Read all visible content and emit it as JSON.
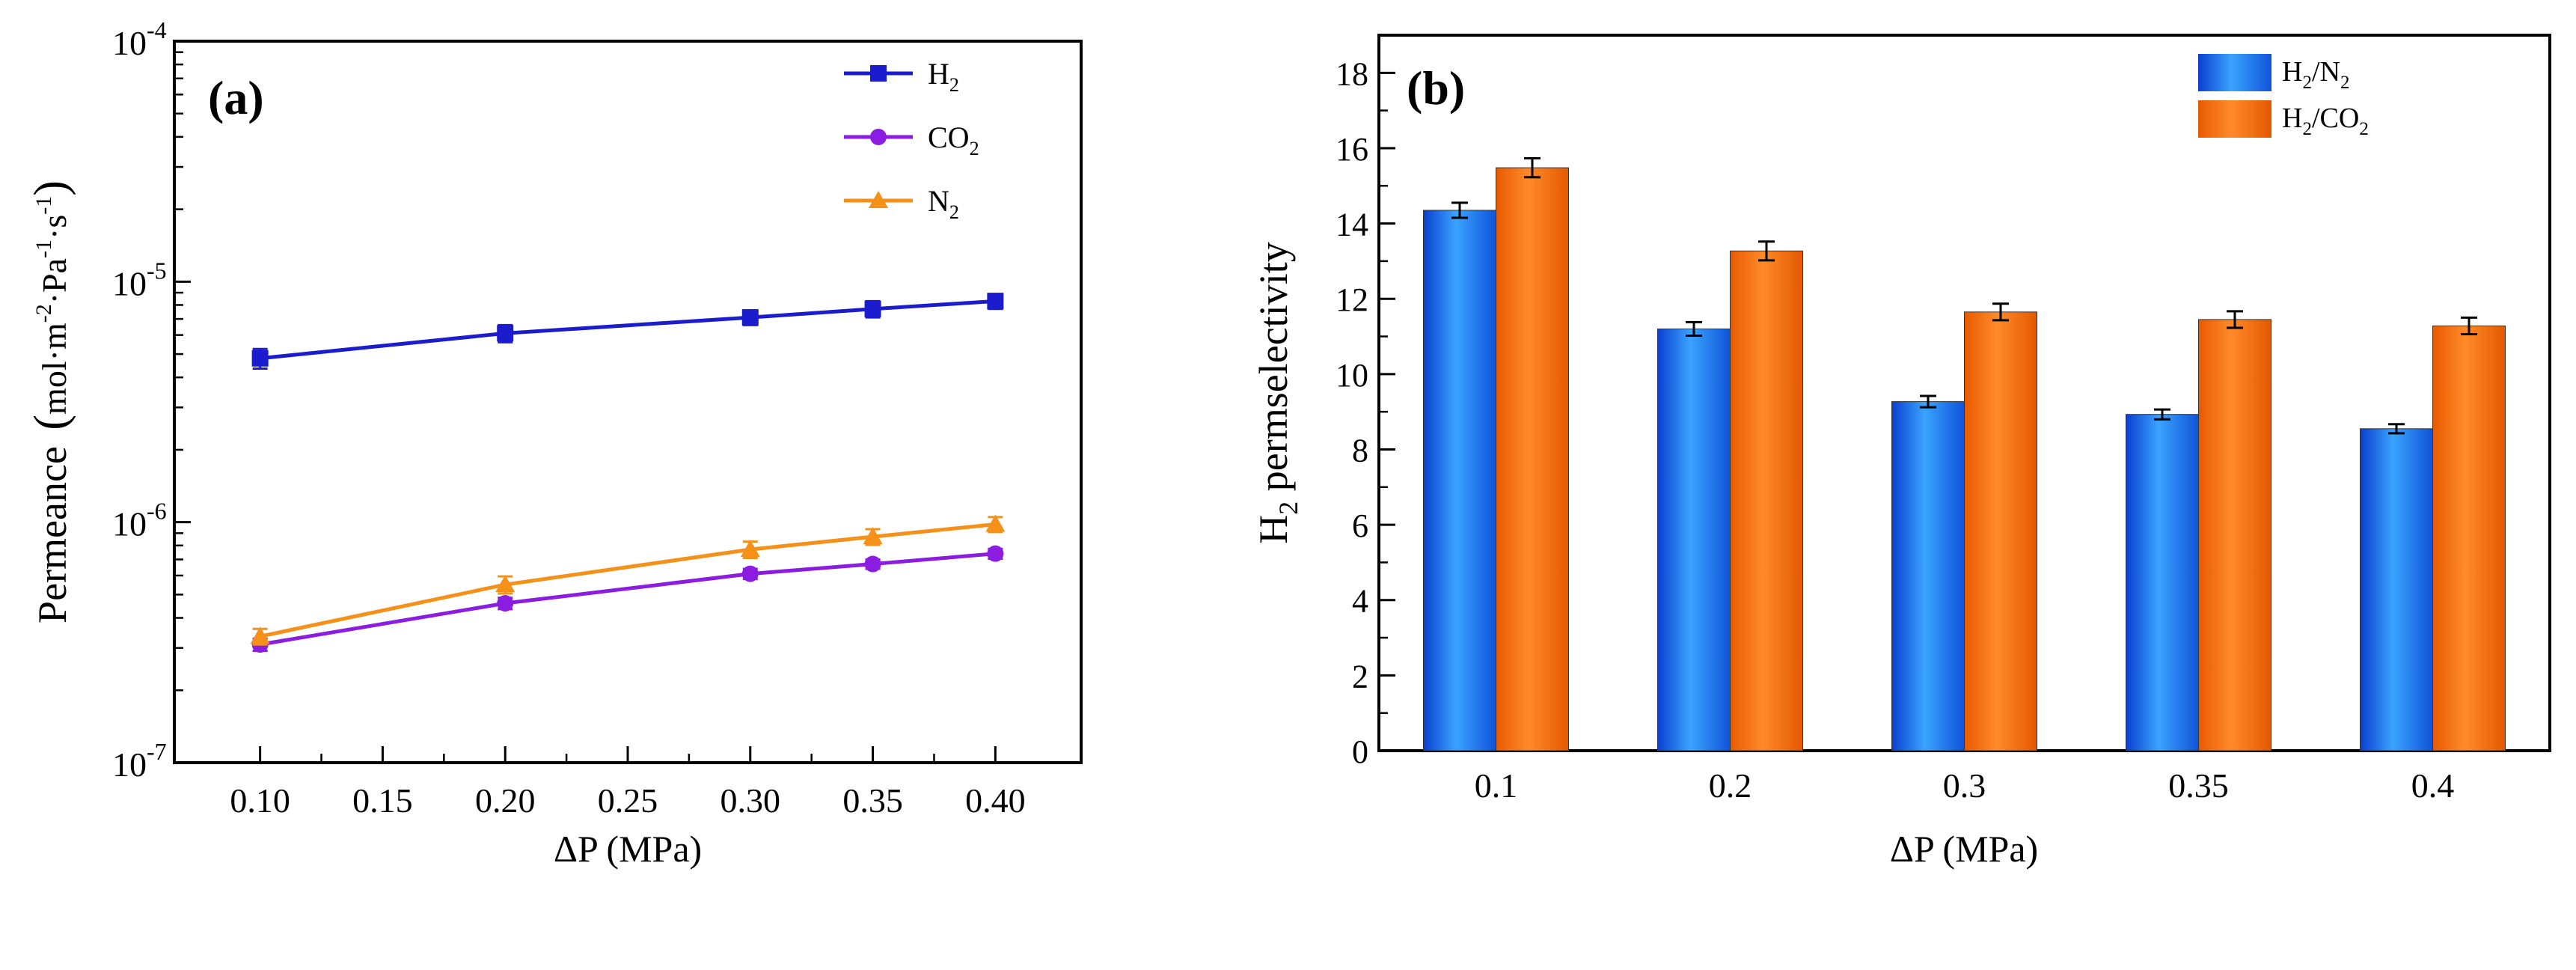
{
  "chart_data": [
    {
      "panel": "(a)",
      "type": "line",
      "x": [
        0.1,
        0.2,
        0.3,
        0.35,
        0.4
      ],
      "x_tick_labels": [
        "0.10",
        "0.15",
        "0.20",
        "0.25",
        "0.30",
        "0.35",
        "0.40"
      ],
      "x_ticks": [
        0.1,
        0.15,
        0.2,
        0.25,
        0.3,
        0.35,
        0.4
      ],
      "xlim": [
        0.065,
        0.435
      ],
      "xlabel": "ΔP (MPa)",
      "ylabel": {
        "main": "Permeance",
        "unit": "mol·m",
        "e1": "-2",
        "mid1": "·Pa",
        "e2": "-1",
        "mid2": "·s",
        "e3": "-1"
      },
      "yscale": "log",
      "ylim": [
        1e-07,
        0.0001
      ],
      "y_ticks": [
        {
          "value": 1e-07,
          "base": "10",
          "exp": "-7"
        },
        {
          "value": 1e-06,
          "base": "10",
          "exp": "-6"
        },
        {
          "value": 1e-05,
          "base": "10",
          "exp": "-5"
        },
        {
          "value": 0.0001,
          "base": "10",
          "exp": "-4"
        }
      ],
      "series": [
        {
          "name": "H2",
          "label_base": "H",
          "label_sub": "2",
          "color": "#1c1ccf",
          "marker": "square",
          "values": [
            4.8e-06,
            6.1e-06,
            7.1e-06,
            7.7e-06,
            8.3e-06
          ],
          "errors": [
            4.5e-07,
            5e-07,
            5e-07,
            6e-07,
            6e-07
          ]
        },
        {
          "name": "CO2",
          "label_base": "CO",
          "label_sub": "2",
          "color": "#8b1de0",
          "marker": "circle",
          "values": [
            3.1e-07,
            4.6e-07,
            6.1e-07,
            6.7e-07,
            7.4e-07
          ],
          "errors": [
            1.8e-08,
            2.5e-08,
            3e-08,
            3e-08,
            3.5e-08
          ]
        },
        {
          "name": "N2",
          "label_base": "N",
          "label_sub": "2",
          "color": "#f59018",
          "marker": "triangle",
          "values": [
            3.35e-07,
            5.5e-07,
            7.7e-07,
            8.7e-07,
            9.8e-07
          ],
          "errors": [
            2.5e-08,
            4.5e-08,
            6e-08,
            6.5e-08,
            7e-08
          ]
        }
      ]
    },
    {
      "panel": "(b)",
      "type": "bar",
      "categories": [
        "0.1",
        "0.2",
        "0.3",
        "0.35",
        "0.4"
      ],
      "xlabel": "ΔP (MPa)",
      "ylabel": {
        "base": "H",
        "sub": "2",
        "rest": " permselectivity"
      },
      "ylim": [
        0,
        19
      ],
      "y_ticks": [
        "0",
        "2",
        "4",
        "6",
        "8",
        "10",
        "12",
        "14",
        "16",
        "18"
      ],
      "series": [
        {
          "name": "H2/N2",
          "label_a": "H",
          "sub_a": "2",
          "label_b": "/N",
          "sub_b": "2",
          "color": "#1e7df2",
          "values": [
            14.35,
            11.2,
            9.27,
            8.93,
            8.55
          ],
          "errors": [
            0.2,
            0.18,
            0.15,
            0.13,
            0.12
          ]
        },
        {
          "name": "H2/CO2",
          "label_a": "H",
          "sub_a": "2",
          "label_b": "/CO",
          "sub_b": "2",
          "color": "#f57310",
          "values": [
            15.48,
            13.27,
            11.65,
            11.45,
            11.28
          ],
          "errors": [
            0.25,
            0.25,
            0.22,
            0.22,
            0.22
          ]
        }
      ]
    }
  ]
}
